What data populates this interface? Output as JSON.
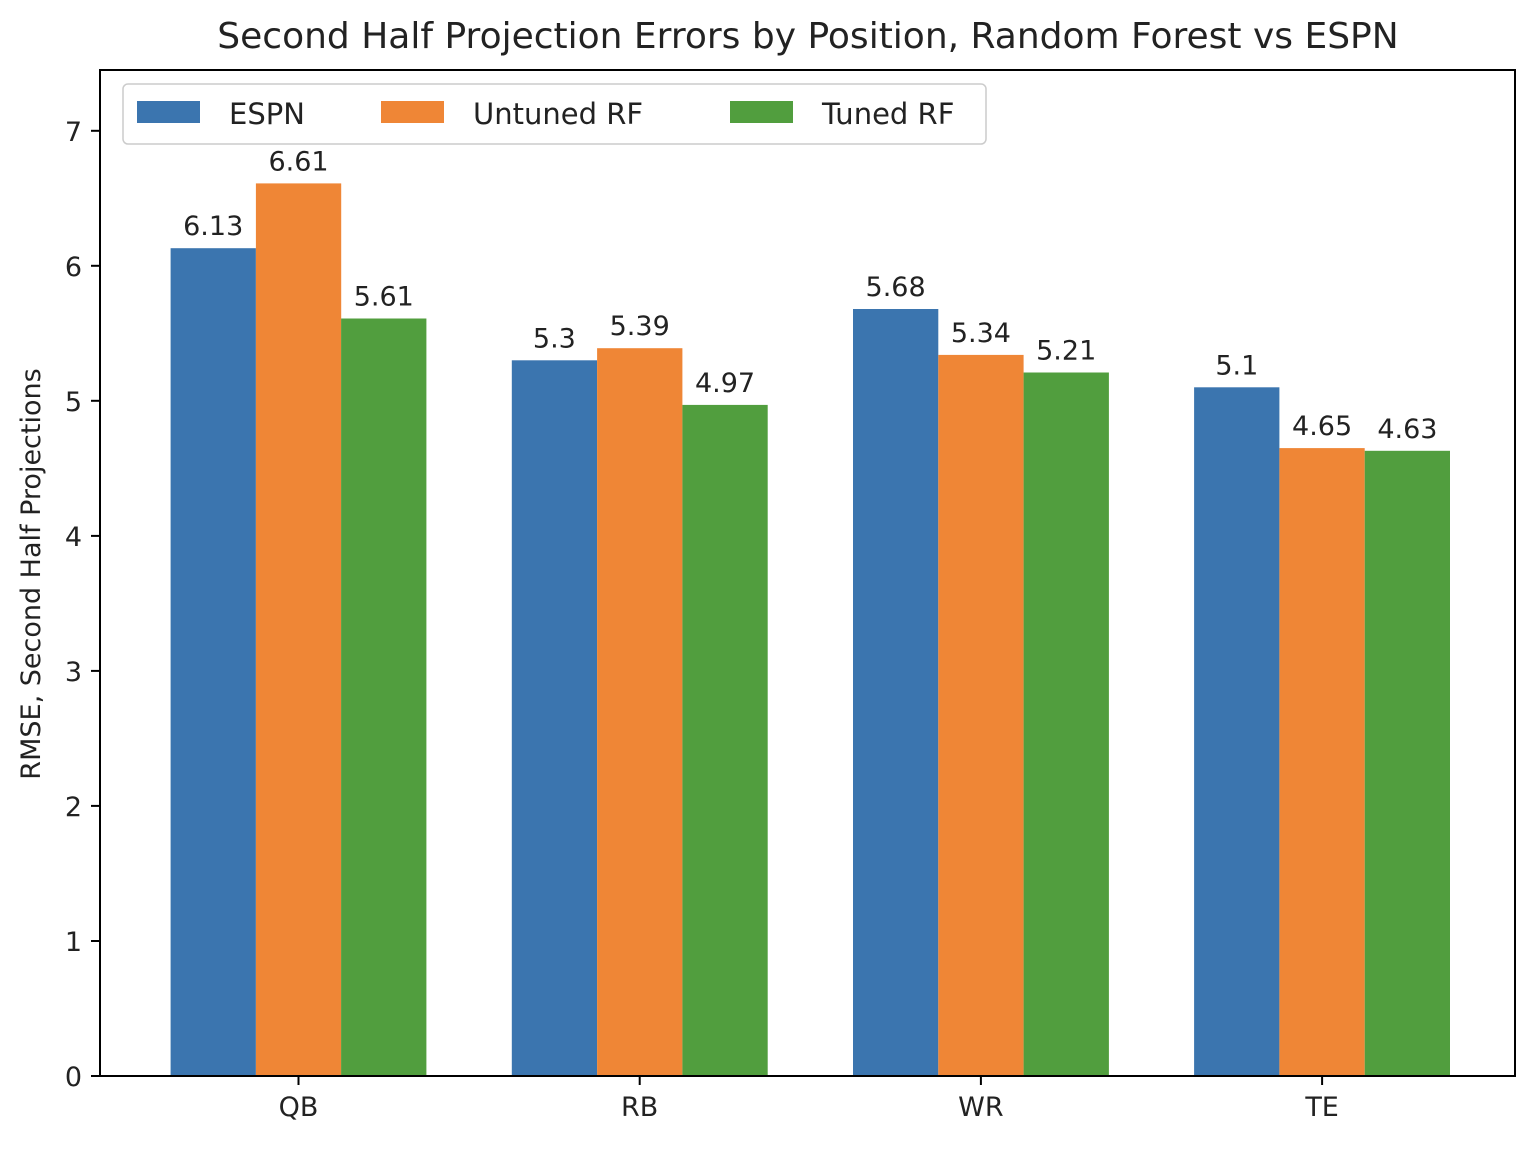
{
  "chart_data": {
    "type": "bar",
    "title": "Second Half Projection Errors by Position, Random Forest vs ESPN",
    "xlabel": "",
    "ylabel": "RMSE, Second Half Projections",
    "categories": [
      "QB",
      "RB",
      "WR",
      "TE"
    ],
    "series": [
      {
        "name": "ESPN",
        "color": "#3b75af",
        "values": [
          6.13,
          5.3,
          5.68,
          5.1
        ]
      },
      {
        "name": "Untuned RF",
        "color": "#ef8636",
        "values": [
          6.61,
          5.39,
          5.34,
          4.65
        ]
      },
      {
        "name": "Tuned RF",
        "color": "#519e3e",
        "values": [
          5.61,
          4.97,
          5.21,
          4.63
        ]
      }
    ],
    "ylim": [
      0,
      7.45
    ],
    "yticks": [
      "0",
      "1",
      "2",
      "3",
      "4",
      "5",
      "6",
      "7"
    ],
    "grid": false,
    "legend": {
      "placement": "top-left",
      "columns": 3
    }
  }
}
